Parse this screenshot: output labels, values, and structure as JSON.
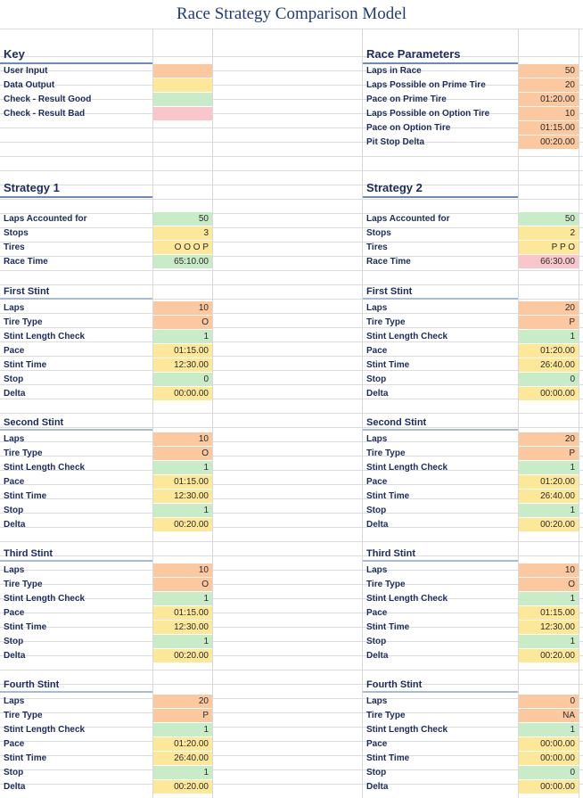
{
  "title": "Race Strategy Comparison Model",
  "colors": {
    "user_input": "#fbc89f",
    "data_output": "#fde89a",
    "check_good": "#c8ecc8",
    "check_bad": "#f9c6cc",
    "header_text": "#1a2b5e"
  },
  "key": {
    "heading": "Key",
    "items": [
      "User Input",
      "Data Output",
      "Check - Result Good",
      "Check - Result Bad"
    ]
  },
  "race_params": {
    "heading": "Race Parameters",
    "rows": [
      {
        "label": "Laps in Race",
        "value": "50"
      },
      {
        "label": "Laps Possible on Prime Tire",
        "value": "20"
      },
      {
        "label": "Pace on Prime Tire",
        "value": "01:20.00"
      },
      {
        "label": "Laps Possible on Option Tire",
        "value": "10"
      },
      {
        "label": "Pace on Option Tire",
        "value": "01:15.00"
      },
      {
        "label": "Pit Stop Delta",
        "value": "00:20.00"
      }
    ]
  },
  "s1": {
    "heading": "Strategy 1",
    "summary": [
      {
        "label": "Laps Accounted for",
        "value": "50"
      },
      {
        "label": "Stops",
        "value": "3"
      },
      {
        "label": "Tires",
        "value": "O O O P"
      },
      {
        "label": "Race Time",
        "value": "65:10.00"
      }
    ],
    "stints": [
      {
        "name": "First Stint",
        "laps": "10",
        "tire": "O",
        "check": "1",
        "pace": "01:15.00",
        "time": "12:30.00",
        "stop": "0",
        "delta": "00:00.00"
      },
      {
        "name": "Second Stint",
        "laps": "10",
        "tire": "O",
        "check": "1",
        "pace": "01:15.00",
        "time": "12:30.00",
        "stop": "1",
        "delta": "00:20.00"
      },
      {
        "name": "Third Stint",
        "laps": "10",
        "tire": "O",
        "check": "1",
        "pace": "01:15.00",
        "time": "12:30.00",
        "stop": "1",
        "delta": "00:20.00"
      },
      {
        "name": "Fourth Stint",
        "laps": "20",
        "tire": "P",
        "check": "1",
        "pace": "01:20.00",
        "time": "26:40.00",
        "stop": "1",
        "delta": "00:20.00"
      }
    ]
  },
  "s2": {
    "heading": "Strategy 2",
    "summary": [
      {
        "label": "Laps Accounted for",
        "value": "50"
      },
      {
        "label": "Stops",
        "value": "2"
      },
      {
        "label": "Tires",
        "value": "P P O"
      },
      {
        "label": "Race Time",
        "value": "66:30.00"
      }
    ],
    "stints": [
      {
        "name": "First Stint",
        "laps": "20",
        "tire": "P",
        "check": "1",
        "pace": "01:20.00",
        "time": "26:40.00",
        "stop": "0",
        "delta": "00:00.00"
      },
      {
        "name": "Second Stint",
        "laps": "20",
        "tire": "P",
        "check": "1",
        "pace": "01:20.00",
        "time": "26:40.00",
        "stop": "1",
        "delta": "00:20.00"
      },
      {
        "name": "Third Stint",
        "laps": "10",
        "tire": "O",
        "check": "1",
        "pace": "01:15.00",
        "time": "12:30.00",
        "stop": "1",
        "delta": "00:20.00"
      },
      {
        "name": "Fourth Stint",
        "laps": "0",
        "tire": "NA",
        "check": "1",
        "pace": "00:00.00",
        "time": "00:00.00",
        "stop": "0",
        "delta": "00:00.00"
      }
    ]
  },
  "stint_labels": [
    "Laps",
    "Tire Type",
    "Stint Length Check",
    "Pace",
    "Stint Time",
    "Stop",
    "Delta"
  ]
}
